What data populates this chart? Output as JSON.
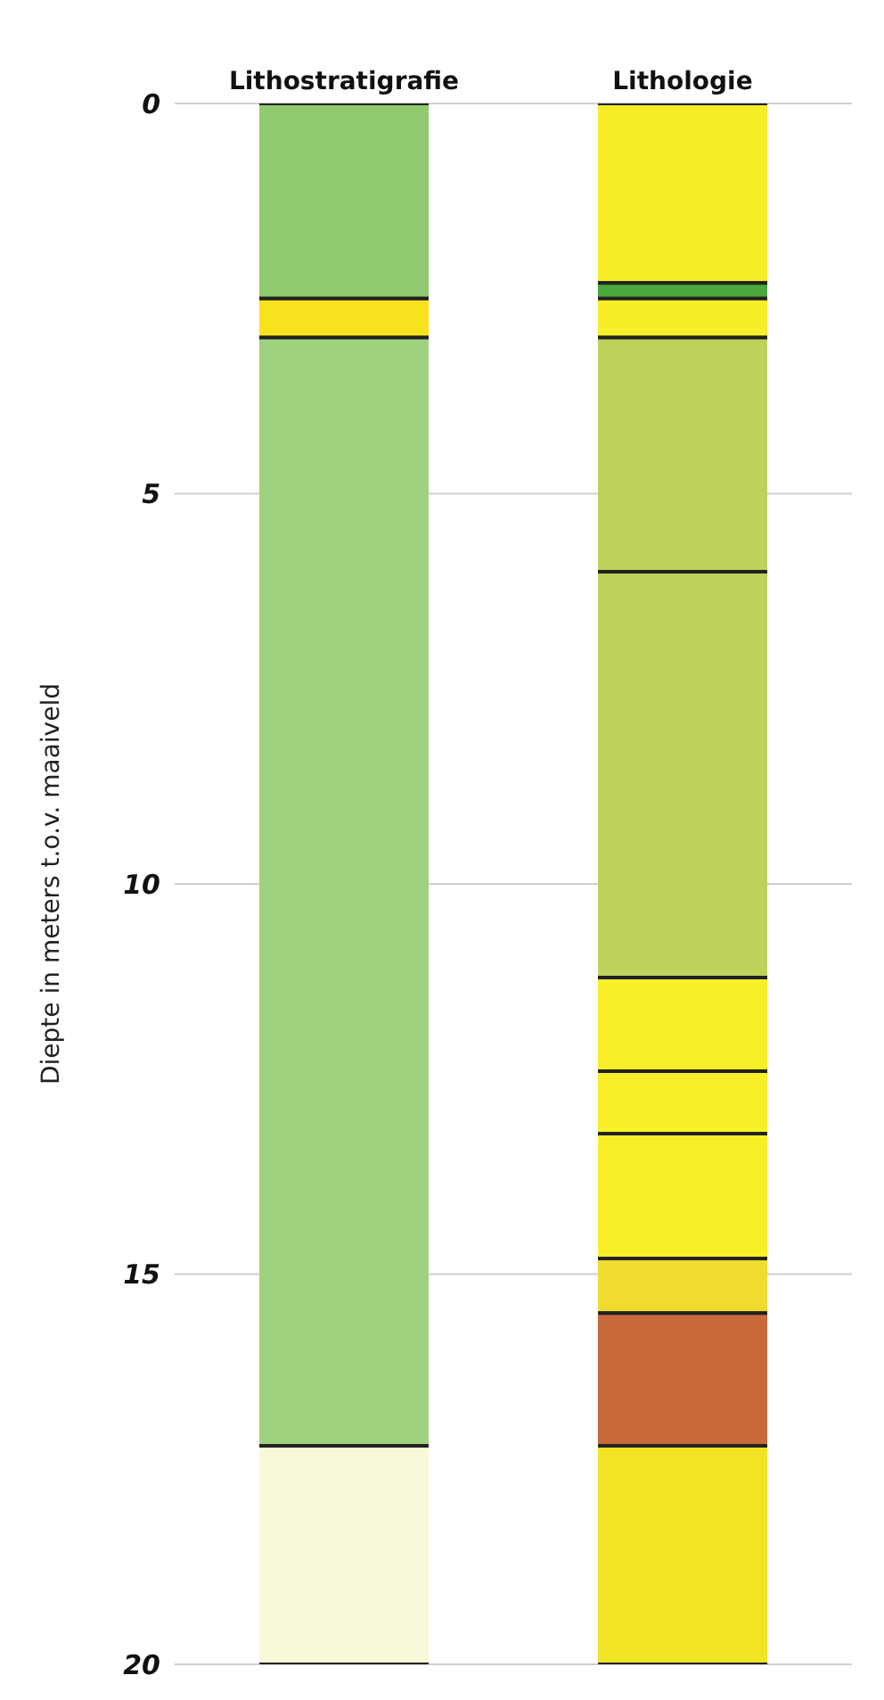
{
  "chart_data": {
    "type": "bar",
    "stacked": true,
    "categories": [
      "Lithostratigrafie",
      "Lithologie"
    ],
    "ylabel": "Diepte in meters t.o.v. maaiveld",
    "ylim": [
      20,
      0
    ],
    "yticks": [
      0,
      5,
      10,
      15,
      20
    ],
    "grid": "y",
    "series": [
      {
        "values": [
          2.5,
          2.3
        ],
        "colors": [
          "#8fcb6e",
          "#f7ee2a"
        ]
      },
      {
        "values": [
          0.5,
          0.2
        ],
        "colors": [
          "#f7e21e",
          "#4aa83c"
        ]
      },
      {
        "values": [
          14.2,
          0.5
        ],
        "colors": [
          "#9fd27e",
          "#f7ee2a"
        ]
      },
      {
        "values": [
          2.8,
          3.0
        ],
        "colors": [
          "#f8f8d8",
          "#bcd25a"
        ]
      },
      {
        "values": [
          null,
          5.2
        ],
        "colors": [
          null,
          "#bcd25a"
        ]
      },
      {
        "values": [
          null,
          1.2
        ],
        "colors": [
          null,
          "#f8ef28"
        ]
      },
      {
        "values": [
          null,
          0.8
        ],
        "colors": [
          null,
          "#f8ef28"
        ]
      },
      {
        "values": [
          null,
          1.6
        ],
        "colors": [
          null,
          "#f8ef28"
        ]
      },
      {
        "values": [
          null,
          0.7
        ],
        "colors": [
          null,
          "#f0dc30"
        ]
      },
      {
        "values": [
          null,
          1.7
        ],
        "colors": [
          null,
          "#c8693a"
        ]
      },
      {
        "values": [
          null,
          2.8
        ],
        "colors": [
          null,
          "#f2e424"
        ]
      }
    ]
  }
}
